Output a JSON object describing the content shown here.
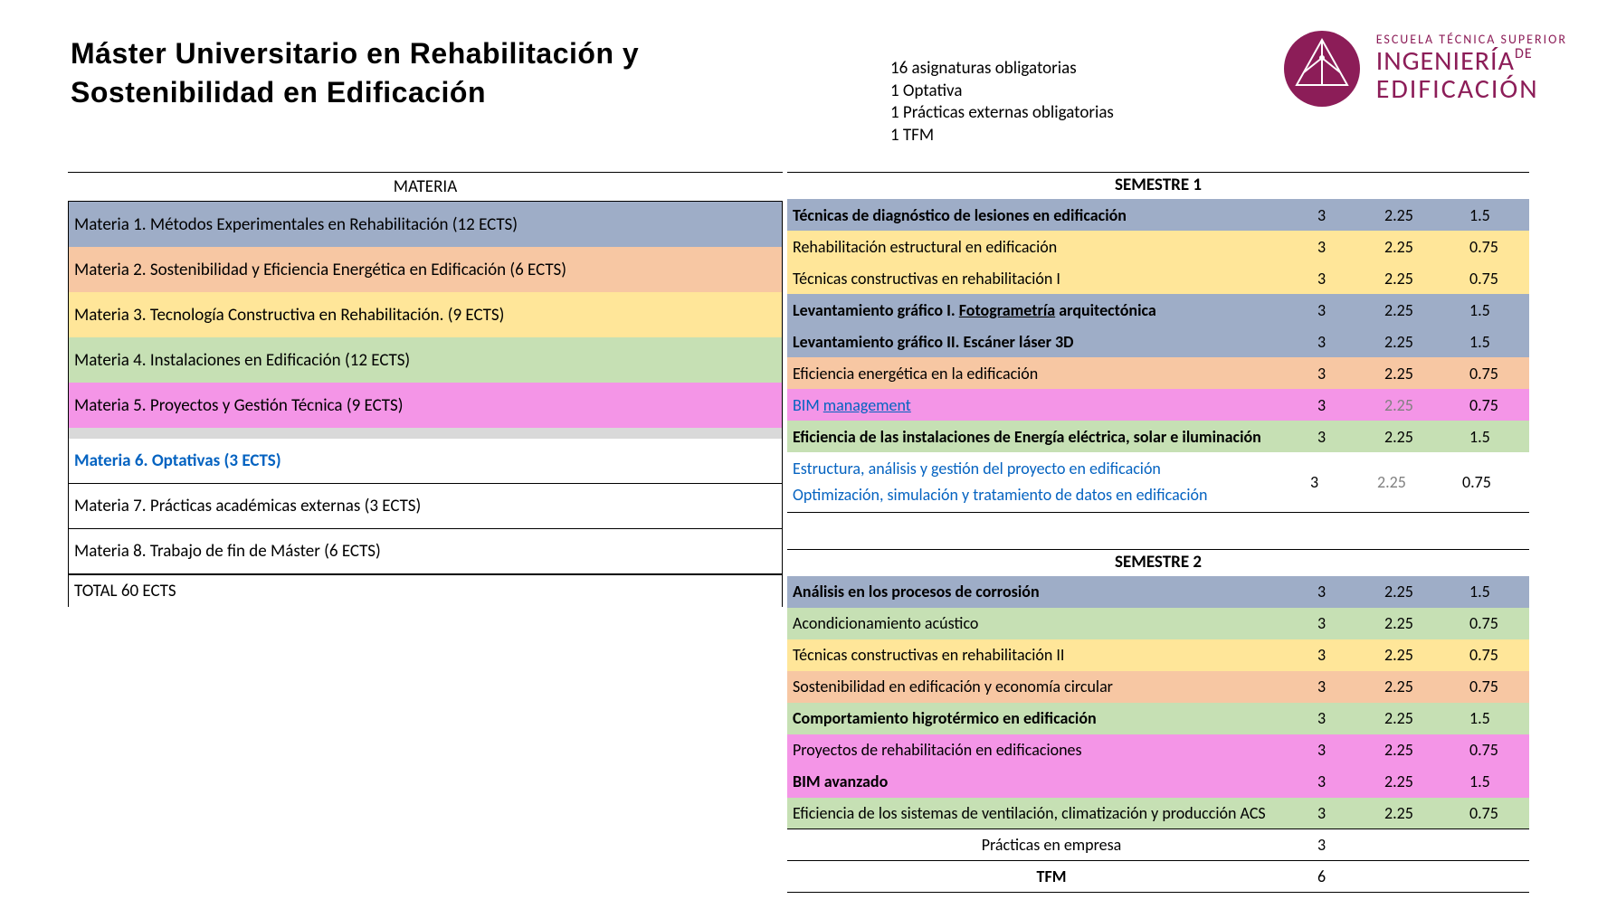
{
  "title": "Máster Universitario en Rehabilitación y Sostenibilidad en Edificación",
  "summary": {
    "l1": "16 asignaturas obligatorias",
    "l2": "1 Optativa",
    "l3": "1 Prácticas externas obligatorias",
    "l4": "1 TFM"
  },
  "logo": {
    "l1": "ESCUELA TÉCNICA SUPERIOR",
    "l2a": "INGENIERÍA",
    "l2b": "DE",
    "l3": "EDIFICACIÓN",
    "icon_bg": "#8c1d58"
  },
  "colors": {
    "blue_gray": "#9eadc7",
    "peach": "#f7c7a3",
    "yellow": "#ffe699",
    "green": "#c6e0b4",
    "pink": "#f495e7",
    "light_gray": "#d9d9d9",
    "white": "#ffffff"
  },
  "materia_header": "MATERIA",
  "materias": [
    {
      "label": "Materia 1. Métodos Experimentales en Rehabilitación (12 ECTS)",
      "color": "#9eadc7"
    },
    {
      "label": "Materia 2. Sostenibilidad y Eficiencia Energética en Edificación (6 ECTS)",
      "color": "#f7c7a3"
    },
    {
      "label": "Materia 3. Tecnología Constructiva en Rehabilitación. (9 ECTS)",
      "color": "#ffe699"
    },
    {
      "label": "Materia 4. Instalaciones en Edificación (12 ECTS)",
      "color": "#c6e0b4"
    },
    {
      "label": "Materia 5. Proyectos y Gestión Técnica (9 ECTS)",
      "color": "#f495e7"
    },
    {
      "label": "Materia 6. Optativas (3 ECTS)",
      "color": "#ffffff",
      "blue_bold": true,
      "spacer_above": true
    },
    {
      "label": "Materia 7. Prácticas académicas externas (3 ECTS)",
      "color": "#ffffff"
    },
    {
      "label": "Materia 8. Trabajo de fin de Máster  (6  ECTS)",
      "color": "#ffffff"
    }
  ],
  "total": "TOTAL 60 ECTS",
  "sem1_header": "SEMESTRE 1",
  "sem1": [
    {
      "name": "Técnicas de diagnóstico de lesiones en edificación",
      "c2": "3",
      "c3": "2.25",
      "c4": "1.5",
      "color": "#9eadc7",
      "bold": true
    },
    {
      "name": "Rehabilitación estructural en edificación",
      "c2": "3",
      "c3": "2.25",
      "c4": "0.75",
      "color": "#ffe699"
    },
    {
      "name": "Técnicas constructivas en rehabilitación I",
      "c2": "3",
      "c3": "2.25",
      "c4": "0.75",
      "color": "#ffe699"
    },
    {
      "name_html": "<b>Levantamiento gráfico I. <u>Fotogrametría</u> arquitectónica</b>",
      "c2": "3",
      "c3": "2.25",
      "c4": "1.5",
      "color": "#9eadc7"
    },
    {
      "name": "Levantamiento gráfico II. Escáner láser 3D",
      "c2": "3",
      "c3": "2.25",
      "c4": "1.5",
      "color": "#9eadc7",
      "bold": true
    },
    {
      "name": "Eficiencia energética en la edificación",
      "c2": "3",
      "c3": "2.25",
      "c4": "0.75",
      "color": "#f7c7a3"
    },
    {
      "name_html": "BIM <u>management</u>",
      "c2": "3",
      "c3": "2.25",
      "c4": "0.75",
      "color": "#f495e7",
      "blue": true,
      "gray_c3": true
    },
    {
      "name": "Eficiencia de las instalaciones de Energía eléctrica, solar e iluminación",
      "c2": "3",
      "c3": "2.25",
      "c4": "1.5",
      "color": "#c6e0b4",
      "bold": true
    }
  ],
  "sem1_opt": {
    "line1": "Estructura, análisis y gestión del proyecto en edificación",
    "line2": "Optimización, simulación y tratamiento de datos en edificación",
    "c2": "3",
    "c3": "2.25",
    "c4": "0.75"
  },
  "sem2_header": "SEMESTRE 2",
  "sem2": [
    {
      "name": "Análisis en los procesos de corrosión",
      "c2": "3",
      "c3": "2.25",
      "c4": "1.5",
      "color": "#9eadc7",
      "bold": true
    },
    {
      "name": "Acondicionamiento acústico",
      "c2": "3",
      "c3": "2.25",
      "c4": "0.75",
      "color": "#c6e0b4"
    },
    {
      "name": "Técnicas constructivas en rehabilitación II",
      "c2": "3",
      "c3": "2.25",
      "c4": "0.75",
      "color": "#ffe699"
    },
    {
      "name": "Sostenibilidad en edificación y economía circular",
      "c2": "3",
      "c3": "2.25",
      "c4": "0.75",
      "color": "#f7c7a3"
    },
    {
      "name": "Comportamiento higrotérmico en edificación",
      "c2": "3",
      "c3": "2.25",
      "c4": "1.5",
      "color": "#c6e0b4",
      "bold": true
    },
    {
      "name": "Proyectos de rehabilitación en edificaciones",
      "c2": "3",
      "c3": "2.25",
      "c4": "0.75",
      "color": "#f495e7"
    },
    {
      "name": "BIM avanzado",
      "c2": "3",
      "c3": "2.25",
      "c4": "1.5",
      "color": "#f495e7",
      "bold": true
    },
    {
      "name": "Eficiencia de los sistemas de ventilación, climatización y producción ACS",
      "c2": "3",
      "c3": "2.25",
      "c4": "0.75",
      "color": "#c6e0b4"
    }
  ],
  "practicas": {
    "label": "Prácticas en empresa",
    "c2": "3"
  },
  "tfm": {
    "label": "TFM",
    "c2": "6"
  }
}
